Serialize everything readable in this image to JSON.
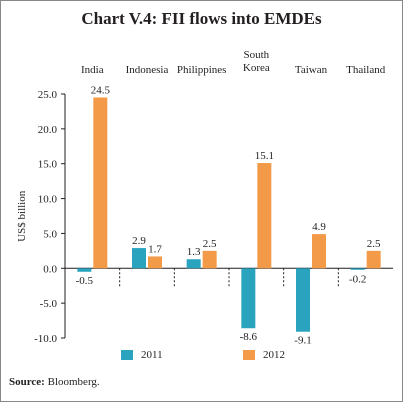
{
  "title": "Chart V.4: FII flows into EMDEs",
  "source_label": "Source:",
  "source_text": " Bloomberg.",
  "colors": {
    "2011": "#2aa3bf",
    "2012": "#f39a48",
    "axis": "#231f20",
    "bg": "#ffffff"
  },
  "chart_data": {
    "type": "bar",
    "categories": [
      "India",
      "Indonesia",
      "Philippines",
      "South Korea",
      "Taiwan",
      "Thailand"
    ],
    "category_lines": [
      [
        "India"
      ],
      [
        "Indonesia"
      ],
      [
        "Philippines"
      ],
      [
        "South",
        "Korea"
      ],
      [
        "Taiwan"
      ],
      [
        "Thailand"
      ]
    ],
    "series": [
      {
        "name": "2011",
        "values": [
          -0.5,
          2.9,
          1.3,
          -8.6,
          -9.1,
          -0.2
        ],
        "labels": [
          "-0.5",
          "2.9",
          "1.3",
          "-8.6",
          "-9.1",
          "-0.2"
        ]
      },
      {
        "name": "2012",
        "values": [
          24.5,
          1.7,
          2.5,
          15.1,
          4.9,
          2.5
        ],
        "labels": [
          "24.5",
          "1.7",
          "2.5",
          "15.1",
          "4.9",
          "2.5"
        ]
      }
    ],
    "ylabel": "US$ billion",
    "ylim": [
      -10,
      25
    ],
    "yticks": [
      25,
      20,
      15,
      10,
      5,
      0,
      -5,
      -10
    ],
    "ytick_labels": [
      "25.0",
      "20.0",
      "15.0",
      "10.0",
      "5.0",
      "0.0",
      "-5.0",
      "-10.0"
    ],
    "legend_position": "bottom",
    "grid": false
  }
}
